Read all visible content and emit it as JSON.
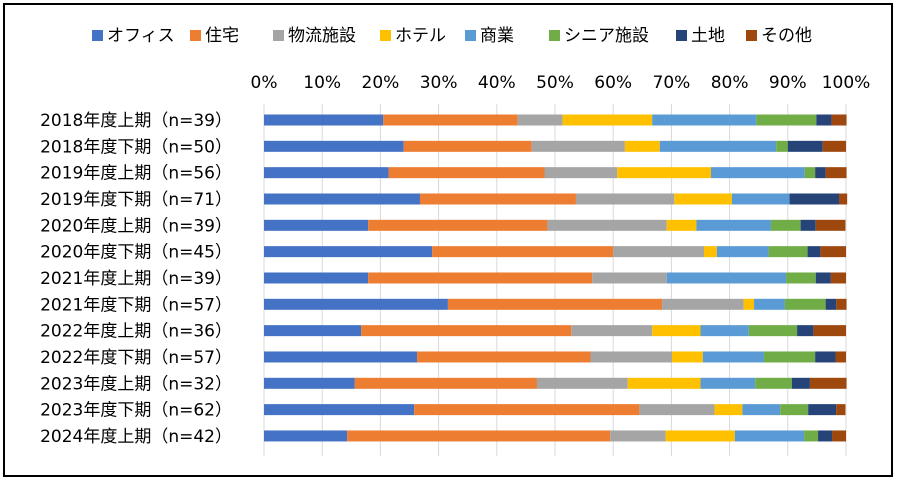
{
  "chart_data": {
    "type": "bar",
    "orientation": "horizontal",
    "stacked": "percent",
    "legend_position": "top",
    "grid": true,
    "xlim": [
      0,
      100
    ],
    "x_ticks": [
      "0%",
      "10%",
      "20%",
      "30%",
      "40%",
      "50%",
      "60%",
      "70%",
      "80%",
      "90%",
      "100%"
    ],
    "categories": [
      "2018年度上期（n=39）",
      "2018年度下期（n=50）",
      "2019年度上期（n=56）",
      "2019年度下期（n=71）",
      "2020年度上期（n=39）",
      "2020年度下期（n=45）",
      "2021年度上期（n=39）",
      "2021年度下期（n=57）",
      "2022年度上期（n=36）",
      "2022年度下期（n=57）",
      "2023年度上期（n=32）",
      "2023年度下期（n=62）",
      "2024年度上期（n=42）"
    ],
    "series": [
      {
        "name": "オフィス",
        "color": "#4472C4",
        "values": [
          20.5,
          24.0,
          21.4,
          26.8,
          17.9,
          28.9,
          17.9,
          31.6,
          16.7,
          26.3,
          15.6,
          25.8,
          14.3
        ]
      },
      {
        "name": "住宅",
        "color": "#ED7D31",
        "values": [
          23.1,
          22.0,
          26.8,
          26.8,
          30.8,
          31.1,
          38.5,
          36.8,
          36.1,
          29.8,
          31.3,
          38.7,
          45.2
        ]
      },
      {
        "name": "物流施設",
        "color": "#A5A5A5",
        "values": [
          7.7,
          16.0,
          12.5,
          16.9,
          20.5,
          15.6,
          12.8,
          14.0,
          13.9,
          14.0,
          15.6,
          12.9,
          9.5
        ]
      },
      {
        "name": "ホテル",
        "color": "#FFC000",
        "values": [
          15.4,
          6.0,
          16.1,
          9.9,
          5.1,
          2.2,
          0.0,
          1.8,
          8.3,
          5.3,
          12.5,
          4.8,
          11.9
        ]
      },
      {
        "name": "商業",
        "color": "#5B9BD5",
        "values": [
          17.9,
          20.0,
          16.1,
          9.9,
          12.8,
          8.9,
          20.5,
          5.3,
          8.3,
          10.5,
          9.4,
          6.5,
          11.9
        ]
      },
      {
        "name": "シニア施設",
        "color": "#70AD47",
        "values": [
          10.3,
          2.0,
          1.8,
          0.0,
          5.1,
          6.7,
          5.1,
          7.0,
          8.3,
          8.8,
          6.3,
          4.8,
          2.4
        ]
      },
      {
        "name": "土地",
        "color": "#264478",
        "values": [
          2.6,
          6.0,
          1.8,
          8.5,
          2.6,
          2.2,
          2.6,
          1.8,
          2.8,
          3.5,
          3.1,
          4.8,
          2.4
        ]
      },
      {
        "name": "その他",
        "color": "#9E480E",
        "values": [
          2.6,
          4.0,
          3.6,
          1.4,
          5.1,
          4.4,
          2.6,
          1.8,
          5.6,
          1.8,
          6.3,
          1.6,
          2.4
        ]
      }
    ]
  }
}
